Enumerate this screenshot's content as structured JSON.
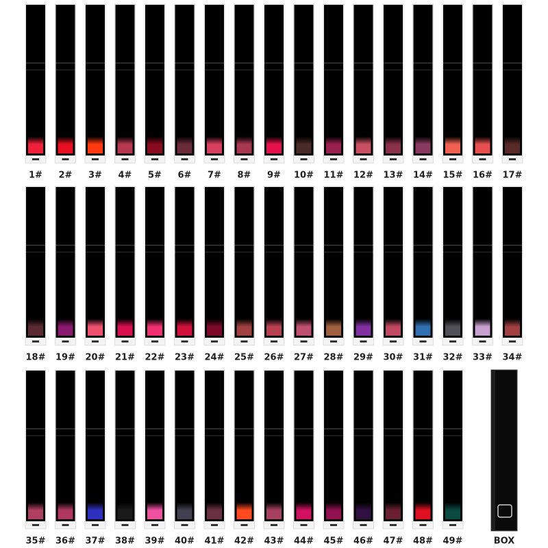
{
  "items": [
    "1#",
    "2#",
    "3#",
    "4#",
    "5#",
    "6#",
    "7#",
    "8#",
    "9#",
    "10#",
    "11#",
    "12#",
    "13#",
    "14#",
    "15#",
    "16#",
    "17#",
    "18#",
    "19#",
    "20#",
    "21#",
    "22#",
    "23#",
    "24#",
    "25#",
    "26#",
    "27#",
    "28#",
    "29#",
    "30#",
    "31#",
    "32#",
    "33#",
    "34#",
    "35#",
    "36#",
    "37#",
    "38#",
    "39#",
    "40#",
    "41#",
    "42#",
    "43#",
    "44#",
    "45#",
    "46#",
    "47#",
    "48#",
    "49#"
  ],
  "box_label": "BOX"
}
